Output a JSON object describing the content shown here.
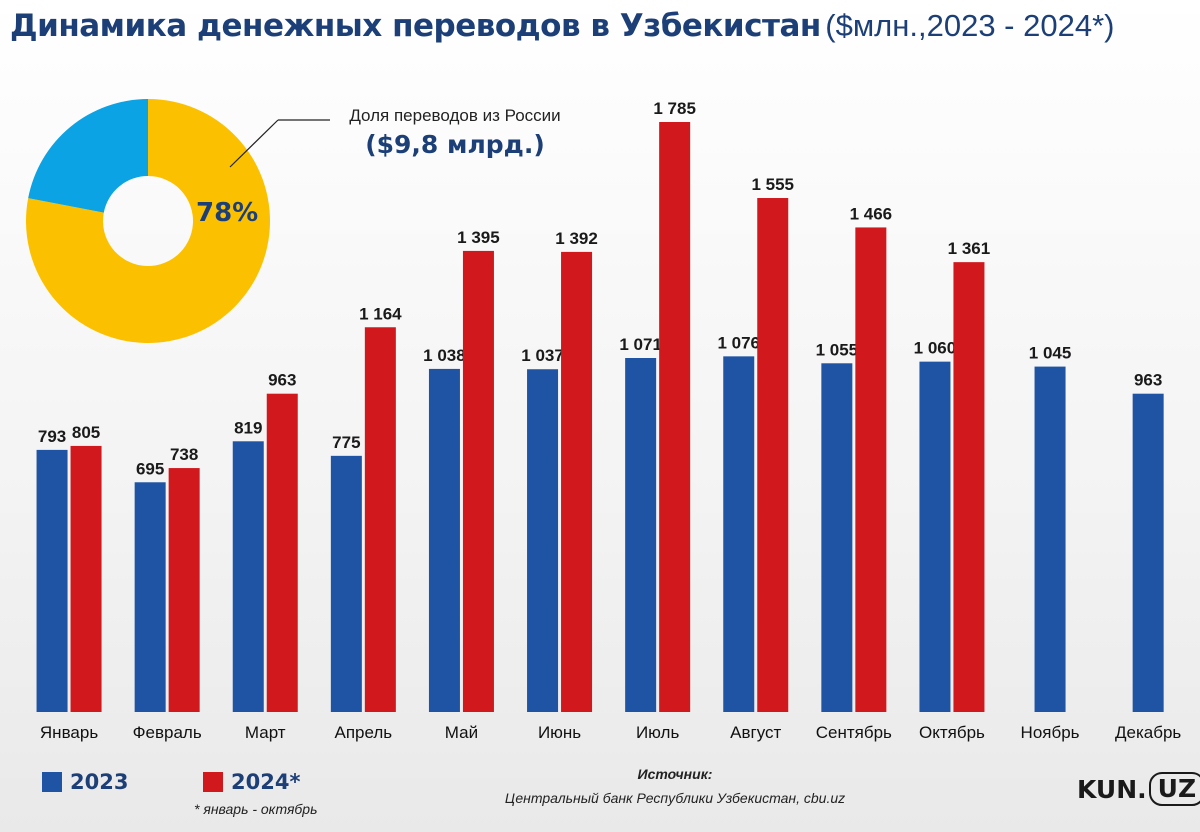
{
  "header": {
    "title": "Динамика денежных переводов в Узбекистан",
    "subtitle": "($млн.,2023 - 2024*)"
  },
  "inset": {
    "caption": "Доля переводов из России",
    "amount": "($9,8 млрд.)",
    "percent_label": "78%",
    "russia_share": 0.78,
    "colors": {
      "russia": "#fbc100",
      "other": "#0ba3e3"
    }
  },
  "chart_data": {
    "type": "bar",
    "categories": [
      "Январь",
      "Февраль",
      "Март",
      "Апрель",
      "Май",
      "Июнь",
      "Июль",
      "Август",
      "Сентябрь",
      "Октябрь",
      "Ноябрь",
      "Декабрь"
    ],
    "series": [
      {
        "name": "2023",
        "color": "#1f54a4",
        "values": [
          793,
          695,
          819,
          775,
          1038,
          1037,
          1071,
          1076,
          1055,
          1060,
          1045,
          963
        ],
        "labels": [
          "793",
          "695",
          "819",
          "775",
          "1 038",
          "1 037",
          "1 071",
          "1 076",
          "1 055",
          "1 060",
          "1 045",
          "963"
        ]
      },
      {
        "name": "2024*",
        "color": "#d0181d",
        "values": [
          805,
          738,
          963,
          1164,
          1395,
          1392,
          1785,
          1555,
          1466,
          1361,
          null,
          null
        ],
        "labels": [
          "805",
          "738",
          "963",
          "1 164",
          "1 395",
          "1 392",
          "1 785",
          "1 555",
          "1 466",
          "1 361",
          null,
          null
        ]
      }
    ],
    "ylim": [
      0,
      1785
    ],
    "grid": false,
    "legend": "bottom-left"
  },
  "legend": {
    "label_2023": "2023",
    "label_2024": "2024*",
    "footnote": "* январь - октябрь"
  },
  "source": {
    "title": "Источник:",
    "text": "Центральный банк Республики Узбекистан, cbu.uz"
  },
  "logo": {
    "kun": "KUN.",
    "uz": "UZ"
  }
}
